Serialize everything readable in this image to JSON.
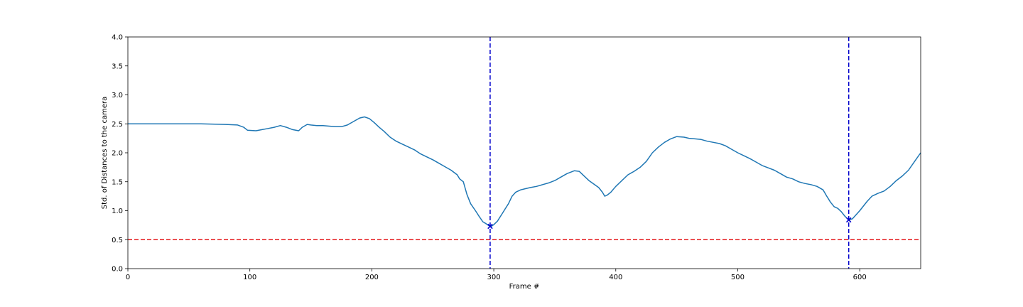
{
  "chart_data": {
    "type": "line",
    "title": "",
    "xlabel": "Frame #",
    "ylabel": "Std. of Distances to the camera",
    "xlim": [
      0,
      650
    ],
    "ylim": [
      0,
      4.0
    ],
    "xticks": [
      0,
      100,
      200,
      300,
      400,
      500,
      600
    ],
    "xtick_labels": [
      "0",
      "100",
      "200",
      "300",
      "400",
      "500",
      "600"
    ],
    "yticks": [
      0,
      0.5,
      1.0,
      1.5,
      2.0,
      2.5,
      3.0,
      3.5,
      4.0
    ],
    "ytick_labels": [
      "0.0",
      "0.5",
      "1.0",
      "1.5",
      "2.0",
      "2.5",
      "3.0",
      "3.5",
      "4.0"
    ],
    "grid": false,
    "colors": {
      "series": "#1f77b4",
      "threshold": "#e41a1c",
      "markers": "#0000cc"
    },
    "series": [
      {
        "x": [
          0,
          20,
          40,
          60,
          80,
          90,
          95,
          98,
          105,
          110,
          115,
          120,
          125,
          130,
          135,
          140,
          143,
          147,
          150,
          155,
          160,
          165,
          170,
          175,
          180,
          185,
          190,
          194,
          198,
          202,
          206,
          210,
          215,
          220,
          225,
          230,
          235,
          240,
          245,
          250,
          255,
          260,
          265,
          270,
          272,
          275,
          278,
          281,
          285,
          288,
          291,
          294,
          296,
          298,
          300,
          303,
          306,
          309,
          312,
          315,
          318,
          322,
          326,
          330,
          335,
          340,
          345,
          350,
          355,
          360,
          366,
          370,
          374,
          378,
          382,
          386,
          389,
          391,
          393,
          396,
          400,
          405,
          410,
          415,
          420,
          425,
          430,
          435,
          440,
          445,
          450,
          456,
          460,
          465,
          470,
          475,
          480,
          485,
          490,
          495,
          500,
          505,
          510,
          515,
          520,
          525,
          530,
          535,
          540,
          545,
          550,
          555,
          560,
          565,
          570,
          573,
          576,
          579,
          582,
          585,
          588,
          591,
          594,
          597,
          600,
          603,
          606,
          610,
          615,
          620,
          625,
          630,
          635,
          640,
          645,
          650
        ],
        "y": [
          2.5,
          2.5,
          2.5,
          2.5,
          2.49,
          2.48,
          2.44,
          2.39,
          2.38,
          2.4,
          2.42,
          2.44,
          2.47,
          2.44,
          2.4,
          2.38,
          2.44,
          2.49,
          2.48,
          2.47,
          2.47,
          2.46,
          2.45,
          2.45,
          2.48,
          2.54,
          2.6,
          2.62,
          2.59,
          2.52,
          2.44,
          2.37,
          2.27,
          2.2,
          2.15,
          2.1,
          2.05,
          1.98,
          1.93,
          1.88,
          1.82,
          1.76,
          1.7,
          1.62,
          1.55,
          1.5,
          1.28,
          1.12,
          1.0,
          0.9,
          0.81,
          0.77,
          0.74,
          0.73,
          0.76,
          0.82,
          0.92,
          1.02,
          1.12,
          1.25,
          1.32,
          1.36,
          1.38,
          1.4,
          1.42,
          1.45,
          1.48,
          1.52,
          1.58,
          1.64,
          1.69,
          1.68,
          1.6,
          1.52,
          1.46,
          1.4,
          1.32,
          1.25,
          1.27,
          1.32,
          1.42,
          1.52,
          1.62,
          1.68,
          1.75,
          1.85,
          2.0,
          2.1,
          2.18,
          2.24,
          2.28,
          2.27,
          2.25,
          2.24,
          2.23,
          2.2,
          2.18,
          2.16,
          2.12,
          2.06,
          2.0,
          1.95,
          1.9,
          1.84,
          1.78,
          1.74,
          1.7,
          1.64,
          1.58,
          1.55,
          1.5,
          1.47,
          1.45,
          1.42,
          1.36,
          1.25,
          1.15,
          1.07,
          1.04,
          0.98,
          0.9,
          0.84,
          0.86,
          0.93,
          1.0,
          1.08,
          1.16,
          1.25,
          1.3,
          1.34,
          1.42,
          1.52,
          1.6,
          1.7,
          1.85,
          2.0
        ]
      }
    ],
    "threshold": {
      "y": 0.5,
      "style": "dashed"
    },
    "event_lines": [
      {
        "x": 297,
        "style": "dashed"
      },
      {
        "x": 591,
        "style": "dashed"
      }
    ],
    "markers": [
      {
        "x": 297,
        "y": 0.73,
        "symbol": "x"
      },
      {
        "x": 591,
        "y": 0.84,
        "symbol": "x"
      }
    ]
  }
}
